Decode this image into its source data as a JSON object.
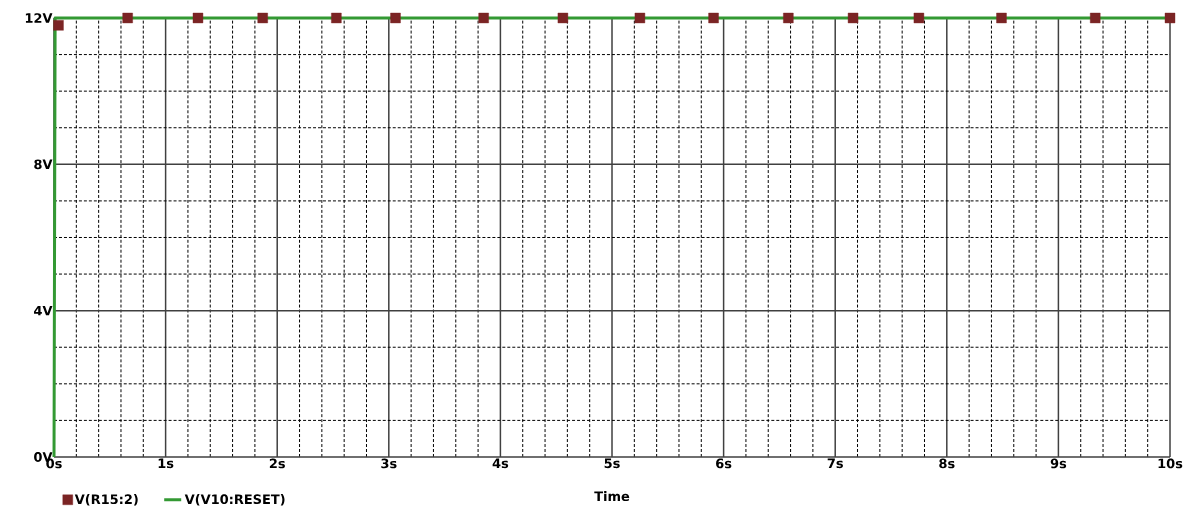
{
  "chart_data": {
    "type": "line",
    "xlabel": "Time",
    "x": [
      0.04,
      0.66,
      1.29,
      1.87,
      2.53,
      3.06,
      3.85,
      4.56,
      5.25,
      5.91,
      6.58,
      7.16,
      7.75,
      8.49,
      9.33,
      10.0
    ],
    "series": [
      {
        "name": "V(R15:2)",
        "type": "scatter",
        "color": "#7b2424",
        "marker": "square",
        "values": [
          11.8,
          12,
          12,
          12,
          12,
          12,
          12,
          12,
          12,
          12,
          12,
          12,
          12,
          12,
          12,
          12
        ]
      },
      {
        "name": "V(V10:RESET)",
        "color": "#339933",
        "marker": "none",
        "x": [
          0,
          0.01,
          10
        ],
        "values": [
          0,
          12,
          12
        ]
      }
    ],
    "xlim": [
      0,
      10
    ],
    "ylim": [
      0,
      12
    ],
    "xticks": [
      {
        "value": 0,
        "label": "0s"
      },
      {
        "value": 1,
        "label": "1s"
      },
      {
        "value": 2,
        "label": "2s"
      },
      {
        "value": 3,
        "label": "3s"
      },
      {
        "value": 4,
        "label": "4s"
      },
      {
        "value": 5,
        "label": "5s"
      },
      {
        "value": 6,
        "label": "6s"
      },
      {
        "value": 7,
        "label": "7s"
      },
      {
        "value": 8,
        "label": "8s"
      },
      {
        "value": 9,
        "label": "9s"
      },
      {
        "value": 10,
        "label": "10s"
      }
    ],
    "yticks": [
      {
        "value": 0,
        "label": "0V"
      },
      {
        "value": 4,
        "label": "4V"
      },
      {
        "value": 8,
        "label": "8V"
      },
      {
        "value": 12,
        "label": "12V"
      }
    ],
    "grid": true,
    "legend": "bottom left"
  }
}
